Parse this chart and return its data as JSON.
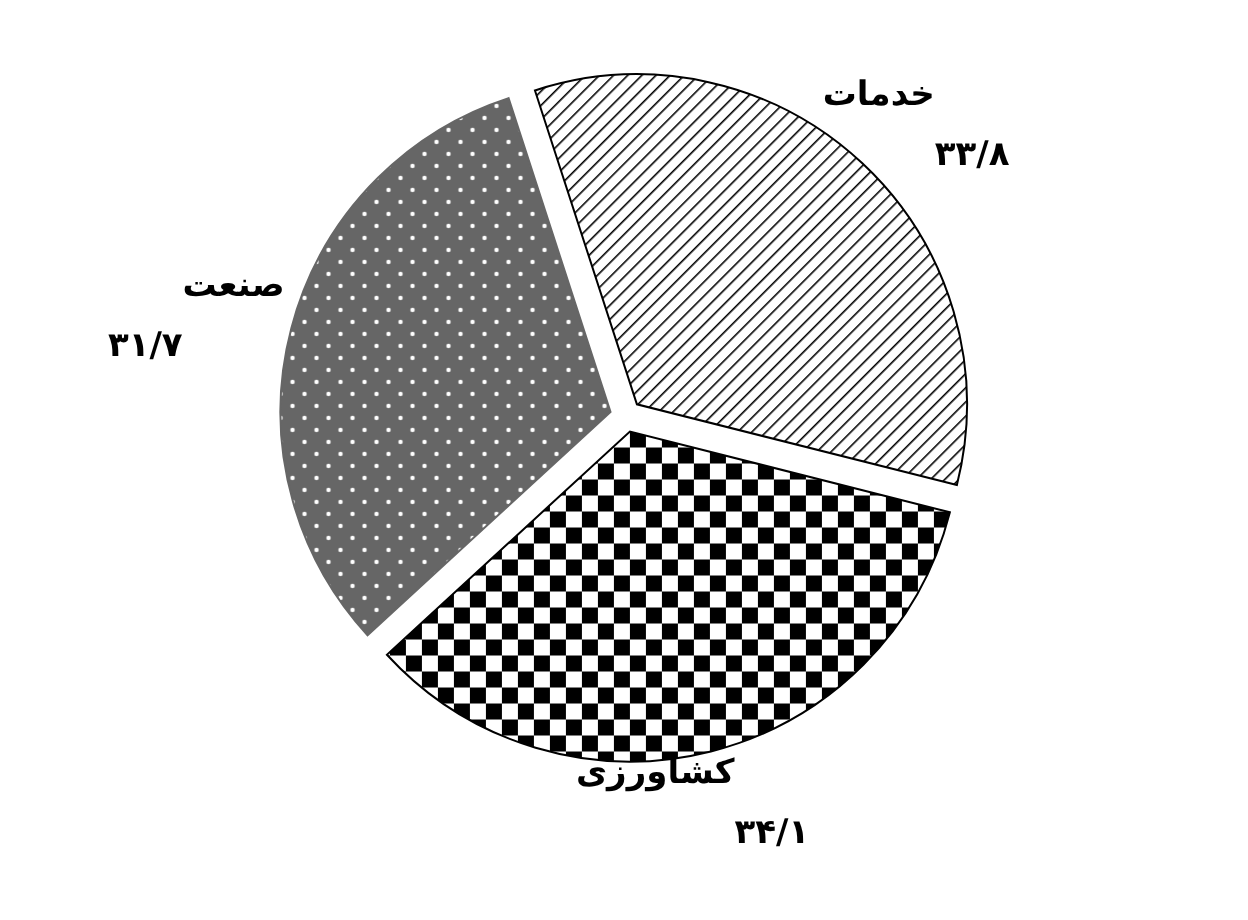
{
  "chart_data": {
    "type": "pie",
    "categories": [
      "خدمات",
      "کشاورزی",
      "صنعت"
    ],
    "values": [
      33.8,
      34.1,
      31.7
    ],
    "value_labels": [
      "۳۳/۸",
      "۳۴/۱",
      "۳۱/۷"
    ],
    "colors": [
      "#000000",
      "#000000",
      "#666666"
    ]
  }
}
